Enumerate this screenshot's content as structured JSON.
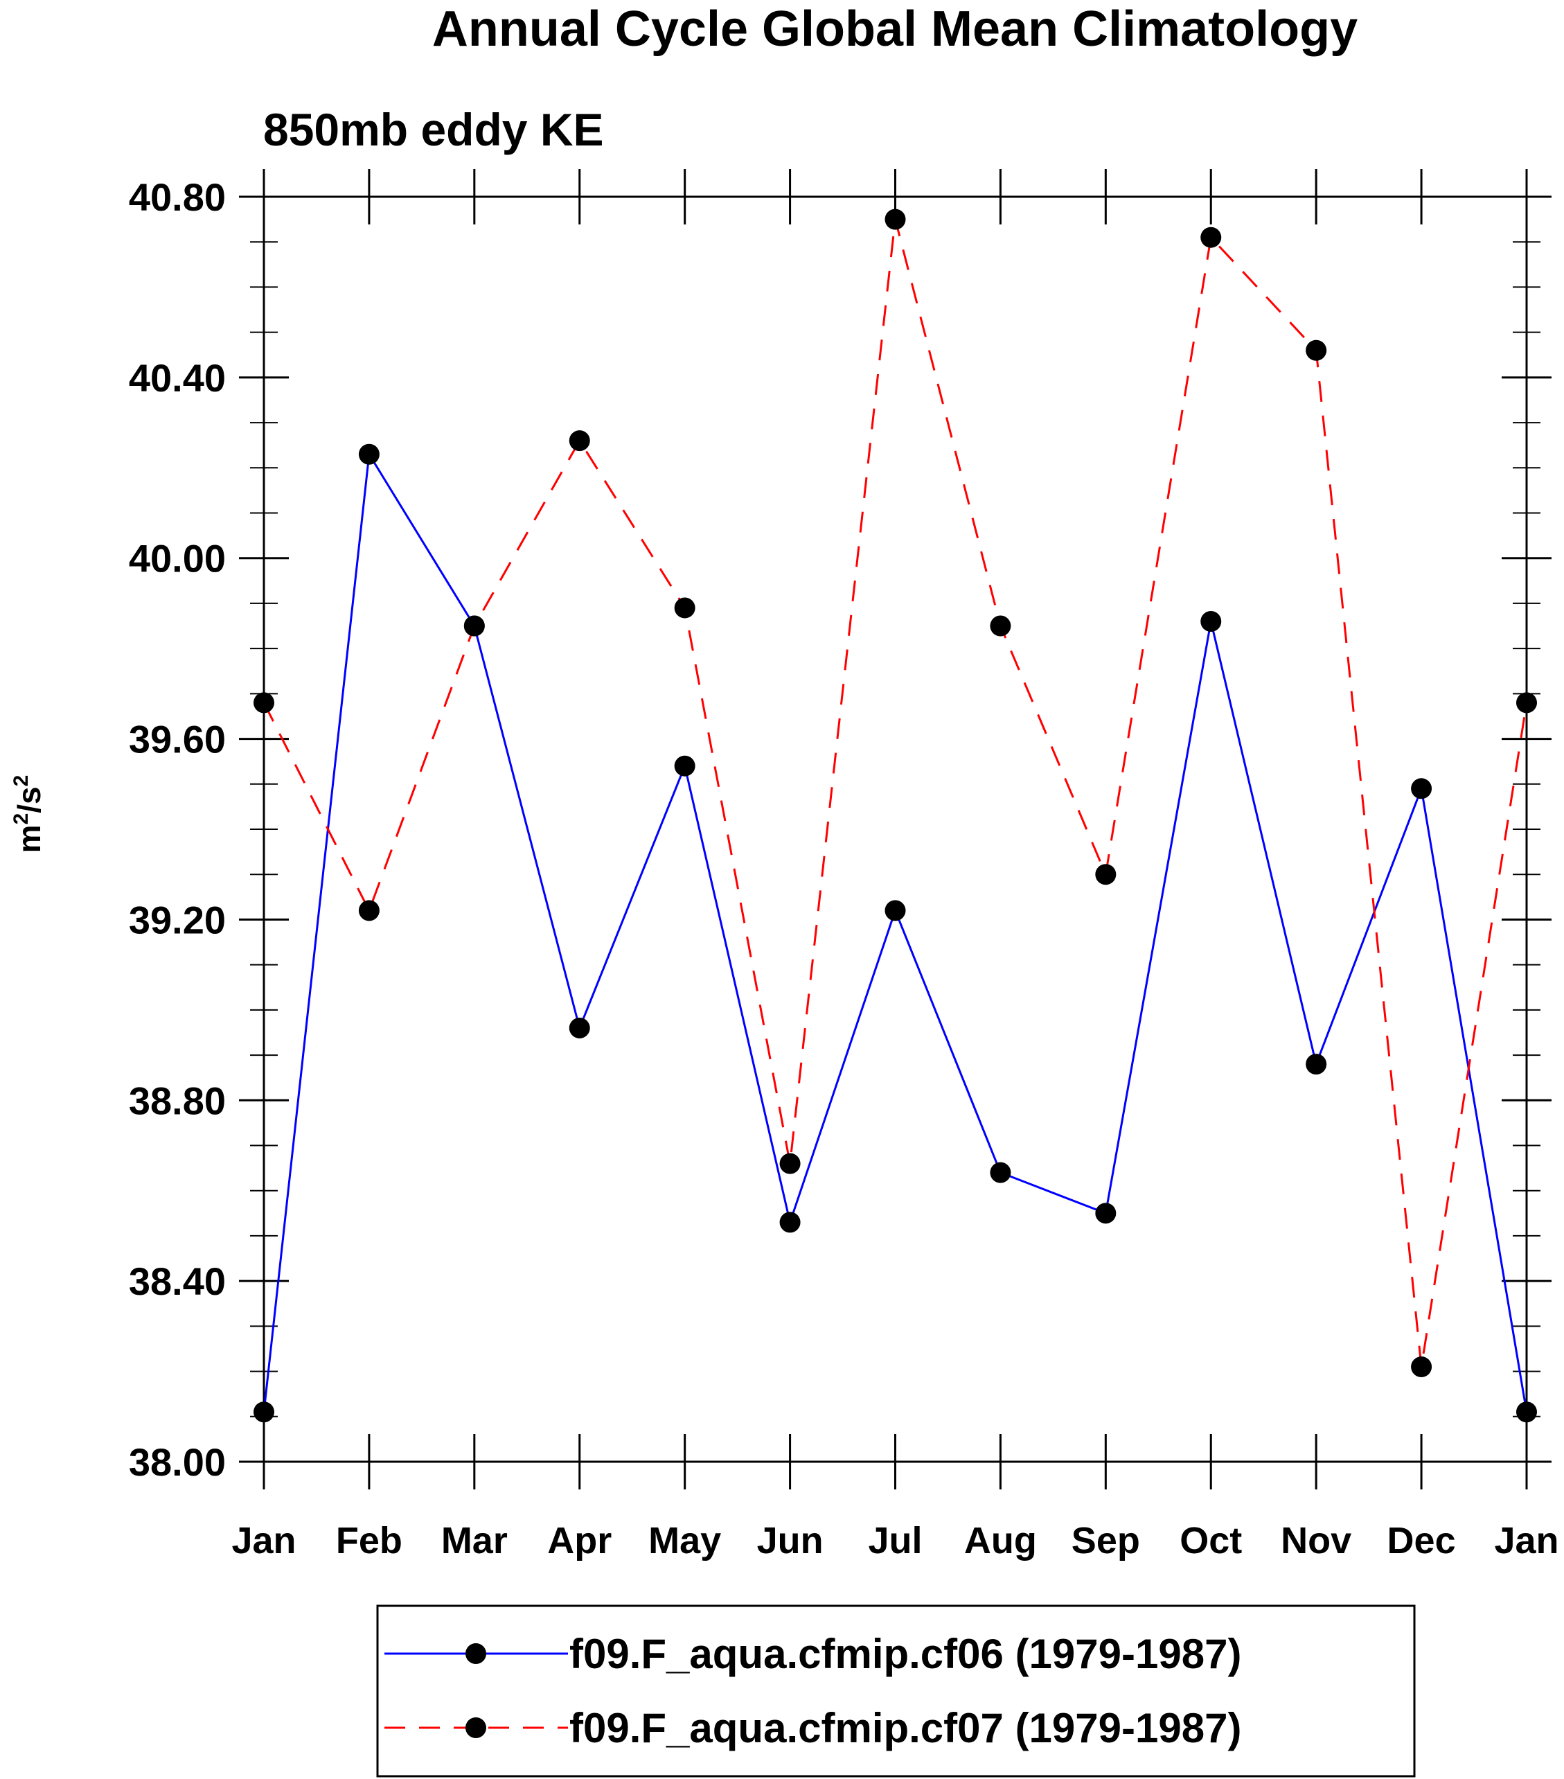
{
  "chart_data": {
    "type": "line",
    "title": "Annual Cycle Global Mean Climatology",
    "subtitle": "850mb eddy KE",
    "ylabel_base": "m",
    "ylabel_sup1": "2",
    "ylabel_mid": "/s",
    "ylabel_sup2": "2",
    "categories": [
      "Jan",
      "Feb",
      "Mar",
      "Apr",
      "May",
      "Jun",
      "Jul",
      "Aug",
      "Sep",
      "Oct",
      "Nov",
      "Dec",
      "Jan"
    ],
    "ylim": [
      38.0,
      40.8
    ],
    "yticks": [
      38.0,
      38.4,
      38.8,
      39.2,
      39.6,
      40.0,
      40.4,
      40.8
    ],
    "ytick_labels": [
      "38.00",
      "38.40",
      "38.80",
      "39.20",
      "39.60",
      "40.00",
      "40.40",
      "40.80"
    ],
    "yminor_step": 0.1,
    "grid": false,
    "legend_position": "bottom",
    "series": [
      {
        "name": "f09.F_aqua.cfmip.cf06 (1979-1987)",
        "color": "#0000ff",
        "dash": "solid",
        "values": [
          38.11,
          40.23,
          39.85,
          38.96,
          39.54,
          38.53,
          39.22,
          38.64,
          38.55,
          39.86,
          38.88,
          39.49,
          38.11
        ]
      },
      {
        "name": "f09.F_aqua.cfmip.cf07 (1979-1987)",
        "color": "#ff0000",
        "dash": "dashed",
        "values": [
          39.68,
          39.22,
          39.85,
          40.26,
          39.89,
          38.66,
          40.75,
          39.85,
          39.3,
          40.71,
          40.46,
          38.21,
          39.68
        ]
      }
    ]
  }
}
